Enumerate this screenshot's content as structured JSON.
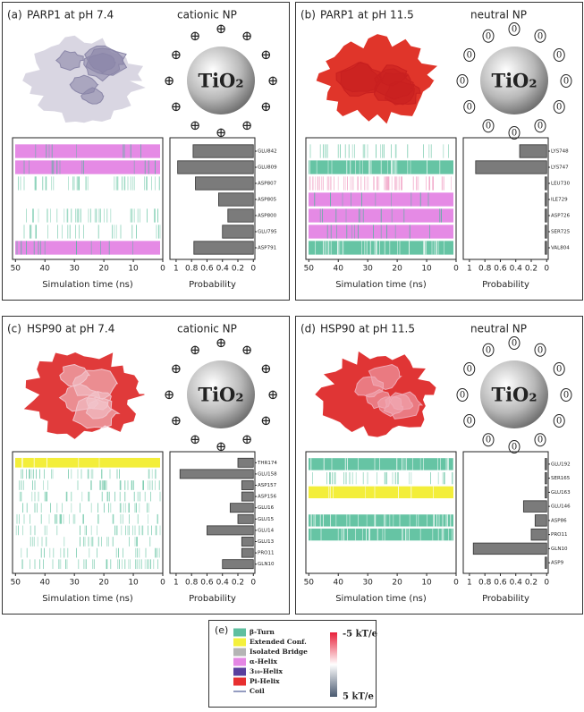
{
  "panels": [
    {
      "label": "(a)",
      "title": "PARP1 at pH 7.4",
      "np": "cationic NP",
      "particle": "TiO₂",
      "charge": "⊕",
      "charge_ring": false,
      "protein_color": "#d9d6e2",
      "protein_accent": "#8a86a8",
      "heatmap_xlabel": "Simulation time (ns)",
      "heatmap_xlim": [
        51,
        0
      ],
      "heatmap_xticks": [
        50,
        40,
        30,
        20,
        10,
        0
      ]
    },
    {
      "label": "(b)",
      "title": "PARP1 at pH 11.5",
      "np": "neutral NP",
      "particle": "TiO₂",
      "charge": "0",
      "charge_ring": true,
      "protein_color": "#e0352a",
      "protein_accent": "#c82020",
      "heatmap_xlabel": "Simulation time (ns)",
      "heatmap_xlim": [
        51,
        0
      ],
      "heatmap_xticks": [
        50,
        40,
        30,
        20,
        10,
        0
      ]
    },
    {
      "label": "(c)",
      "title": "HSP90 at pH 7.4",
      "np": "cationic NP",
      "particle": "TiO₂",
      "charge": "⊕",
      "charge_ring": false,
      "protein_color": "#e03a3a",
      "protein_accent": "#f2c4cc",
      "heatmap_xlabel": "Simulation time (ns)",
      "heatmap_xlim": [
        51,
        0
      ],
      "heatmap_xticks": [
        50,
        40,
        30,
        20,
        10,
        0
      ]
    },
    {
      "label": "(d)",
      "title": "HSP90 at pH 11.5",
      "np": "neutral NP",
      "particle": "TiO₂",
      "charge": "0",
      "charge_ring": true,
      "protein_color": "#e03535",
      "protein_accent": "#f0a8b4",
      "heatmap_xlabel": "Simulation time (ns)",
      "heatmap_xlim": [
        51,
        0
      ],
      "heatmap_xticks": [
        50,
        40,
        30,
        20,
        10,
        0
      ]
    }
  ],
  "chart_data": [
    {
      "type": "bar",
      "xlabel": "Probability",
      "categories": [
        "GLU842",
        "GLU809",
        "ASP807",
        "ASP805",
        "ASP800",
        "GLU795",
        "ASP791"
      ],
      "values": [
        0.78,
        0.98,
        0.75,
        0.45,
        0.33,
        0.4,
        0.77
      ],
      "color": "#7b7b7b",
      "xlim": [
        1.08,
        -0.02
      ],
      "xticks": [
        1,
        0.8,
        0.6,
        0.4,
        0.2,
        0
      ]
    },
    {
      "type": "bar",
      "xlabel": "Probability",
      "categories": [
        "LYS748",
        "LYS747",
        "LEU730",
        "ILE729",
        "ASP726",
        "SER725",
        "VAL804"
      ],
      "values": [
        0.35,
        0.92,
        0.02,
        0.02,
        0.02,
        0.02,
        0.02
      ],
      "color": "#7b7b7b",
      "xlim": [
        1.08,
        -0.02
      ],
      "xticks": [
        1,
        0.8,
        0.6,
        0.4,
        0.2,
        0
      ]
    },
    {
      "type": "bar",
      "xlabel": "Probability",
      "categories": [
        "THR174",
        "GLU158",
        "ASP157",
        "ASP156",
        "GLU16",
        "GLU15",
        "GLU14",
        "GLU13",
        "PRO11",
        "GLN10"
      ],
      "values": [
        0.2,
        0.95,
        0.15,
        0.15,
        0.3,
        0.2,
        0.6,
        0.15,
        0.15,
        0.4
      ],
      "color": "#7b7b7b",
      "xlim": [
        1.08,
        -0.02
      ],
      "xticks": [
        1,
        0.8,
        0.6,
        0.4,
        0.2,
        0
      ]
    },
    {
      "type": "bar",
      "xlabel": "Probability",
      "categories": [
        "GLU192",
        "SER165",
        "GLU163",
        "GLU146",
        "ASP86",
        "PRO11",
        "GLN10",
        "ASP9"
      ],
      "values": [
        0.02,
        0.02,
        0.02,
        0.3,
        0.15,
        0.2,
        0.95,
        0.02
      ],
      "color": "#7b7b7b",
      "xlim": [
        1.08,
        -0.02
      ],
      "xticks": [
        1,
        0.8,
        0.6,
        0.4,
        0.2,
        0
      ]
    }
  ],
  "legend": {
    "label": "(e)",
    "items": [
      {
        "name": "β-Turn",
        "color": "#5fbf9f",
        "marker": "box"
      },
      {
        "name": "Extended Conf.",
        "color": "#f4f03c",
        "marker": "box"
      },
      {
        "name": "Isolated Bridge",
        "color": "#b4b4b4",
        "marker": "box"
      },
      {
        "name": "α-Helix",
        "color": "#e486e4",
        "marker": "box"
      },
      {
        "name": "3₁₀-Helix",
        "color": "#5a3f9e",
        "marker": "box"
      },
      {
        "name": "Pi-Helix",
        "color": "#e83030",
        "marker": "box"
      },
      {
        "name": "Coil",
        "color": "#2a3a80",
        "marker": "line"
      }
    ],
    "colorbar": {
      "top": "-5 kT/e",
      "bottom": "5 kT/e",
      "colors": [
        "#e8203a",
        "#ffffff",
        "#4a5a70"
      ]
    }
  }
}
